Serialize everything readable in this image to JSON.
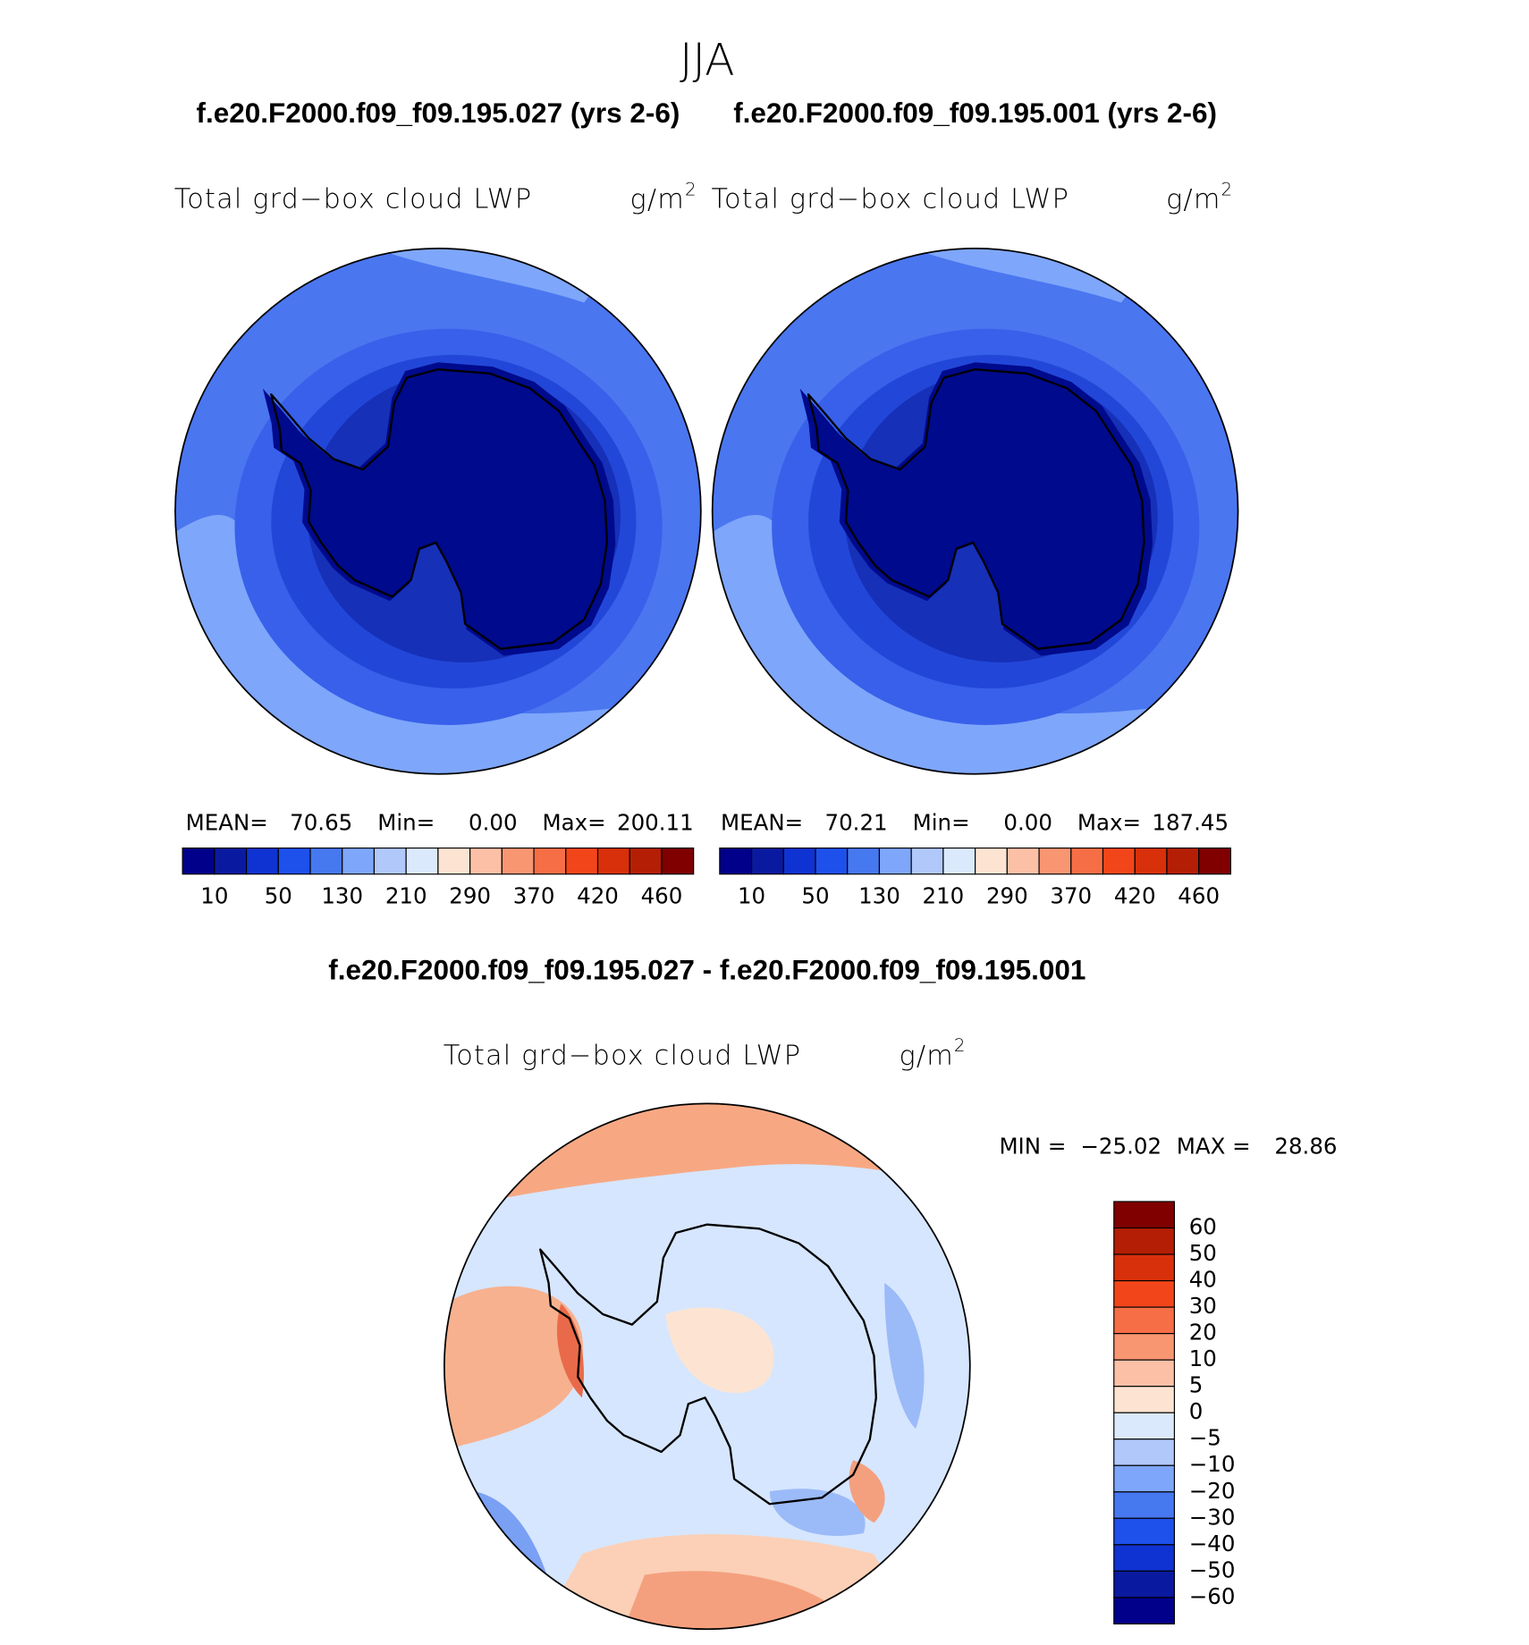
{
  "title": "JJA",
  "panels": [
    {
      "case": "f.e20.F2000.f09_f09.195.027 (yrs 2-6)",
      "variable": "Total grd−box cloud LWP",
      "units": "g/m",
      "units_exp": "2",
      "stats": {
        "mean_label": "MEAN=",
        "mean": "70.65",
        "min_label": "Min=",
        "min": "0.00",
        "max_label": "Max=",
        "max": "200.11"
      }
    },
    {
      "case": "f.e20.F2000.f09_f09.195.001 (yrs 2-6)",
      "variable": "Total grd−box cloud LWP",
      "units": "g/m",
      "units_exp": "2",
      "stats": {
        "mean_label": "MEAN=",
        "mean": "70.21",
        "min_label": "Min=",
        "min": "0.00",
        "max_label": "Max=",
        "max": "187.45"
      }
    }
  ],
  "colorbar": {
    "colors": [
      "#00008b",
      "#0a1aa0",
      "#0f32d2",
      "#1e50eb",
      "#4678f0",
      "#7ea6fa",
      "#b0c8fa",
      "#dbe9fc",
      "#fde4d2",
      "#fcc0a6",
      "#f89672",
      "#f66e46",
      "#f2461a",
      "#d8300a",
      "#b41e04",
      "#800000"
    ],
    "labels": [
      10,
      50,
      130,
      210,
      290,
      370,
      420,
      460
    ]
  },
  "diff": {
    "case": "f.e20.F2000.f09_f09.195.027 - f.e20.F2000.f09_f09.195.001",
    "variable": "Total grd−box cloud LWP",
    "units": "g/m",
    "units_exp": "2",
    "stats": {
      "min_label": "MIN =",
      "min": "−25.02",
      "max_label": "MAX =",
      "max": "28.86"
    },
    "colorbar": {
      "colors": [
        "#800000",
        "#b41e04",
        "#d8300a",
        "#f2461a",
        "#f66e46",
        "#f89672",
        "#fcc0a6",
        "#fde4d2",
        "#dbe9fc",
        "#b0c8fa",
        "#7ea6fa",
        "#4678f0",
        "#1e50eb",
        "#0f32d2",
        "#0a1aa0",
        "#00008b"
      ],
      "labels": [
        60,
        50,
        40,
        30,
        20,
        10,
        5,
        0,
        {
          "value": -5,
          "label": "−5"
        },
        {
          "value": -10,
          "label": "−10"
        },
        {
          "value": -20,
          "label": "−20"
        },
        {
          "value": -30,
          "label": "−30"
        },
        {
          "value": -40,
          "label": "−40"
        },
        {
          "value": -50,
          "label": "−50"
        },
        {
          "value": -60,
          "label": "−60"
        }
      ]
    }
  }
}
